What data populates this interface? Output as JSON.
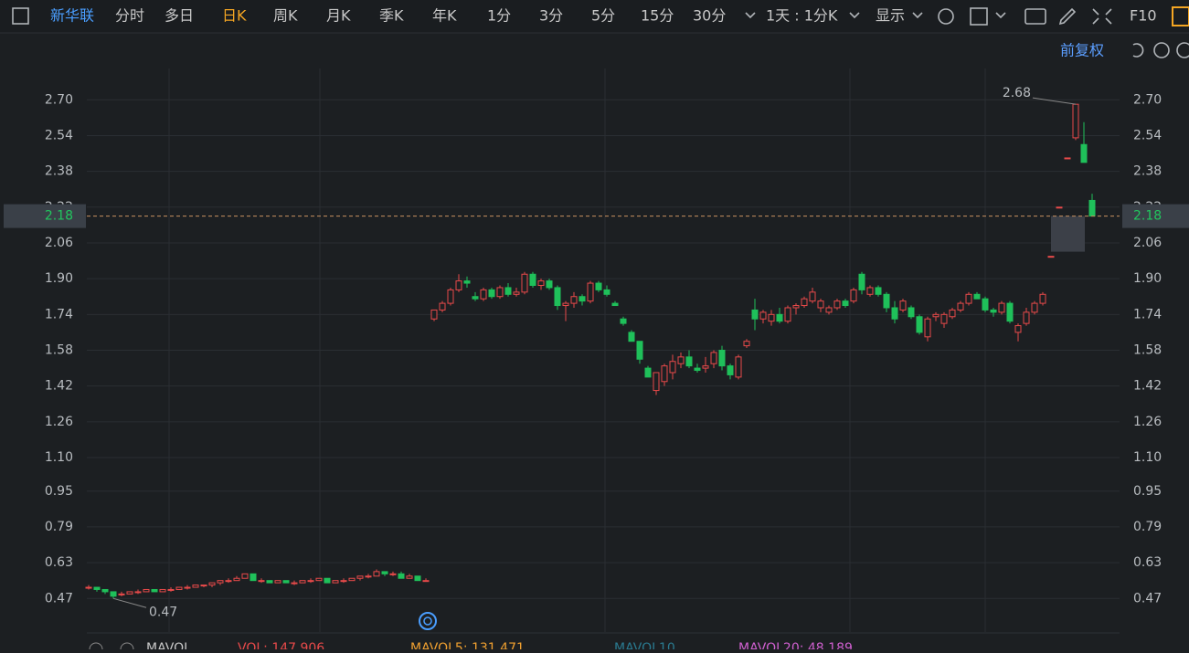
{
  "toolbar": {
    "stock_name": "新华联",
    "tabs": [
      "分时",
      "多日",
      "日K",
      "周K",
      "月K",
      "季K",
      "年K",
      "1分",
      "3分",
      "5分",
      "15分",
      "30分"
    ],
    "active_tab_index": 2,
    "interval": "1天 : 1分K",
    "display": "显示",
    "f10": "F10"
  },
  "adjust": "前复权",
  "chart_data": {
    "type": "candlestick",
    "ylim": [
      0.32,
      2.84
    ],
    "yticks": [
      0.47,
      0.63,
      0.79,
      0.95,
      {
        "value": 1.1,
        "label": "1.10"
      },
      1.26,
      1.42,
      1.58,
      1.74,
      {
        "value": 1.9,
        "label": "1.90"
      },
      2.06,
      2.22,
      2.38,
      2.54,
      {
        "value": 2.7,
        "label": "2.70"
      }
    ],
    "grid": true,
    "up_color": "#e84a4a",
    "down_color": "#1fc05a",
    "last_price": 2.18,
    "high_label": 2.68,
    "low_label": 0.47,
    "candles": [
      [
        0.52,
        0.53,
        0.51,
        0.52
      ],
      [
        0.52,
        0.52,
        0.5,
        0.51
      ],
      [
        0.51,
        0.51,
        0.49,
        0.5
      ],
      [
        0.5,
        0.5,
        0.47,
        0.48
      ],
      [
        0.49,
        0.5,
        0.48,
        0.49
      ],
      [
        0.49,
        0.5,
        0.49,
        0.5
      ],
      [
        0.5,
        0.51,
        0.49,
        0.5
      ],
      [
        0.5,
        0.51,
        0.5,
        0.51
      ],
      [
        0.51,
        0.51,
        0.5,
        0.5
      ],
      [
        0.5,
        0.51,
        0.5,
        0.51
      ],
      [
        0.51,
        0.52,
        0.5,
        0.51
      ],
      [
        0.51,
        0.52,
        0.51,
        0.52
      ],
      [
        0.52,
        0.53,
        0.51,
        0.52
      ],
      [
        0.52,
        0.53,
        0.52,
        0.53
      ],
      [
        0.53,
        0.53,
        0.52,
        0.53
      ],
      [
        0.53,
        0.54,
        0.52,
        0.54
      ],
      [
        0.54,
        0.55,
        0.53,
        0.55
      ],
      [
        0.55,
        0.56,
        0.54,
        0.55
      ],
      [
        0.55,
        0.57,
        0.55,
        0.56
      ],
      [
        0.56,
        0.58,
        0.56,
        0.58
      ],
      [
        0.58,
        0.58,
        0.55,
        0.55
      ],
      [
        0.55,
        0.56,
        0.54,
        0.55
      ],
      [
        0.55,
        0.55,
        0.54,
        0.54
      ],
      [
        0.54,
        0.55,
        0.54,
        0.55
      ],
      [
        0.55,
        0.55,
        0.54,
        0.54
      ],
      [
        0.54,
        0.55,
        0.53,
        0.54
      ],
      [
        0.54,
        0.55,
        0.54,
        0.55
      ],
      [
        0.55,
        0.56,
        0.54,
        0.55
      ],
      [
        0.55,
        0.56,
        0.55,
        0.56
      ],
      [
        0.56,
        0.56,
        0.54,
        0.54
      ],
      [
        0.54,
        0.55,
        0.54,
        0.55
      ],
      [
        0.55,
        0.56,
        0.54,
        0.55
      ],
      [
        0.55,
        0.56,
        0.55,
        0.56
      ],
      [
        0.56,
        0.57,
        0.55,
        0.57
      ],
      [
        0.57,
        0.58,
        0.56,
        0.57
      ],
      [
        0.57,
        0.6,
        0.57,
        0.59
      ],
      [
        0.59,
        0.59,
        0.57,
        0.58
      ],
      [
        0.58,
        0.59,
        0.57,
        0.58
      ],
      [
        0.58,
        0.59,
        0.56,
        0.56
      ],
      [
        0.56,
        0.58,
        0.56,
        0.57
      ],
      [
        0.57,
        0.57,
        0.55,
        0.55
      ],
      [
        0.55,
        0.56,
        0.55,
        0.55
      ],
      [
        1.72,
        1.76,
        1.71,
        1.76
      ],
      [
        1.76,
        1.8,
        1.75,
        1.79
      ],
      [
        1.79,
        1.86,
        1.78,
        1.85
      ],
      [
        1.85,
        1.92,
        1.84,
        1.89
      ],
      [
        1.89,
        1.91,
        1.86,
        1.88
      ],
      [
        1.82,
        1.84,
        1.8,
        1.81
      ],
      [
        1.81,
        1.86,
        1.8,
        1.85
      ],
      [
        1.85,
        1.86,
        1.81,
        1.82
      ],
      [
        1.82,
        1.87,
        1.81,
        1.86
      ],
      [
        1.86,
        1.88,
        1.82,
        1.83
      ],
      [
        1.83,
        1.86,
        1.82,
        1.84
      ],
      [
        1.84,
        1.93,
        1.83,
        1.92
      ],
      [
        1.92,
        1.93,
        1.86,
        1.87
      ],
      [
        1.87,
        1.9,
        1.85,
        1.89
      ],
      [
        1.89,
        1.9,
        1.85,
        1.86
      ],
      [
        1.86,
        1.87,
        1.76,
        1.78
      ],
      [
        1.78,
        1.8,
        1.71,
        1.79
      ],
      [
        1.79,
        1.84,
        1.77,
        1.82
      ],
      [
        1.82,
        1.83,
        1.78,
        1.8
      ],
      [
        1.8,
        1.89,
        1.79,
        1.88
      ],
      [
        1.88,
        1.89,
        1.84,
        1.85
      ],
      [
        1.85,
        1.87,
        1.82,
        1.83
      ],
      [
        1.79,
        1.8,
        1.78,
        1.78
      ],
      [
        1.72,
        1.73,
        1.69,
        1.7
      ],
      [
        1.66,
        1.67,
        1.62,
        1.62
      ],
      [
        1.62,
        1.62,
        1.52,
        1.54
      ],
      [
        1.5,
        1.51,
        1.46,
        1.46
      ],
      [
        1.4,
        1.48,
        1.38,
        1.48
      ],
      [
        1.44,
        1.52,
        1.42,
        1.51
      ],
      [
        1.48,
        1.56,
        1.45,
        1.53
      ],
      [
        1.52,
        1.57,
        1.5,
        1.55
      ],
      [
        1.55,
        1.58,
        1.5,
        1.51
      ],
      [
        1.5,
        1.52,
        1.48,
        1.49
      ],
      [
        1.5,
        1.55,
        1.48,
        1.51
      ],
      [
        1.52,
        1.58,
        1.5,
        1.57
      ],
      [
        1.58,
        1.6,
        1.49,
        1.51
      ],
      [
        1.51,
        1.52,
        1.45,
        1.47
      ],
      [
        1.46,
        1.56,
        1.45,
        1.55
      ],
      [
        1.6,
        1.63,
        1.59,
        1.62
      ],
      [
        1.76,
        1.81,
        1.67,
        1.72
      ],
      [
        1.72,
        1.76,
        1.7,
        1.75
      ],
      [
        1.71,
        1.76,
        1.69,
        1.74
      ],
      [
        1.74,
        1.77,
        1.7,
        1.71
      ],
      [
        1.71,
        1.78,
        1.7,
        1.77
      ],
      [
        1.77,
        1.79,
        1.74,
        1.78
      ],
      [
        1.78,
        1.82,
        1.77,
        1.81
      ],
      [
        1.8,
        1.86,
        1.79,
        1.84
      ],
      [
        1.77,
        1.81,
        1.75,
        1.8
      ],
      [
        1.75,
        1.78,
        1.74,
        1.77
      ],
      [
        1.77,
        1.81,
        1.76,
        1.8
      ],
      [
        1.8,
        1.81,
        1.77,
        1.78
      ],
      [
        1.8,
        1.86,
        1.79,
        1.85
      ],
      [
        1.92,
        1.93,
        1.83,
        1.85
      ],
      [
        1.83,
        1.87,
        1.82,
        1.86
      ],
      [
        1.86,
        1.87,
        1.82,
        1.83
      ],
      [
        1.83,
        1.84,
        1.75,
        1.77
      ],
      [
        1.77,
        1.8,
        1.7,
        1.72
      ],
      [
        1.76,
        1.81,
        1.75,
        1.8
      ],
      [
        1.77,
        1.78,
        1.72,
        1.73
      ],
      [
        1.73,
        1.74,
        1.65,
        1.66
      ],
      [
        1.64,
        1.73,
        1.62,
        1.72
      ],
      [
        1.73,
        1.75,
        1.71,
        1.74
      ],
      [
        1.7,
        1.75,
        1.68,
        1.74
      ],
      [
        1.73,
        1.77,
        1.72,
        1.76
      ],
      [
        1.76,
        1.8,
        1.75,
        1.79
      ],
      [
        1.79,
        1.84,
        1.78,
        1.83
      ],
      [
        1.83,
        1.84,
        1.81,
        1.81
      ],
      [
        1.81,
        1.82,
        1.75,
        1.76
      ],
      [
        1.76,
        1.77,
        1.73,
        1.75
      ],
      [
        1.75,
        1.8,
        1.74,
        1.79
      ],
      [
        1.79,
        1.8,
        1.7,
        1.71
      ],
      [
        1.66,
        1.7,
        1.62,
        1.69
      ],
      [
        1.7,
        1.77,
        1.69,
        1.75
      ],
      [
        1.75,
        1.8,
        1.74,
        1.79
      ],
      [
        1.79,
        1.84,
        1.78,
        1.83
      ],
      [
        2.0,
        2.0,
        2.0,
        2.0
      ],
      [
        2.22,
        2.22,
        2.22,
        2.22
      ],
      [
        2.44,
        2.44,
        2.44,
        2.44
      ],
      [
        2.53,
        2.68,
        2.52,
        2.68
      ],
      [
        2.5,
        2.6,
        2.42,
        2.42
      ],
      [
        2.25,
        2.28,
        2.18,
        2.18
      ]
    ]
  },
  "volume_bar": {
    "items": [
      {
        "text": "MAVOL",
        "color": "#c8c8c8"
      },
      {
        "text": "VOL: 147,906",
        "color": "#e84a4a"
      },
      {
        "text": "MAVOL5: 131,471",
        "color": "#f0a030"
      },
      {
        "text": "MAVOL10",
        "color": "#2a7a90"
      },
      {
        "text": "MAVOL20: 48,189",
        "color": "#d060d0"
      }
    ]
  }
}
